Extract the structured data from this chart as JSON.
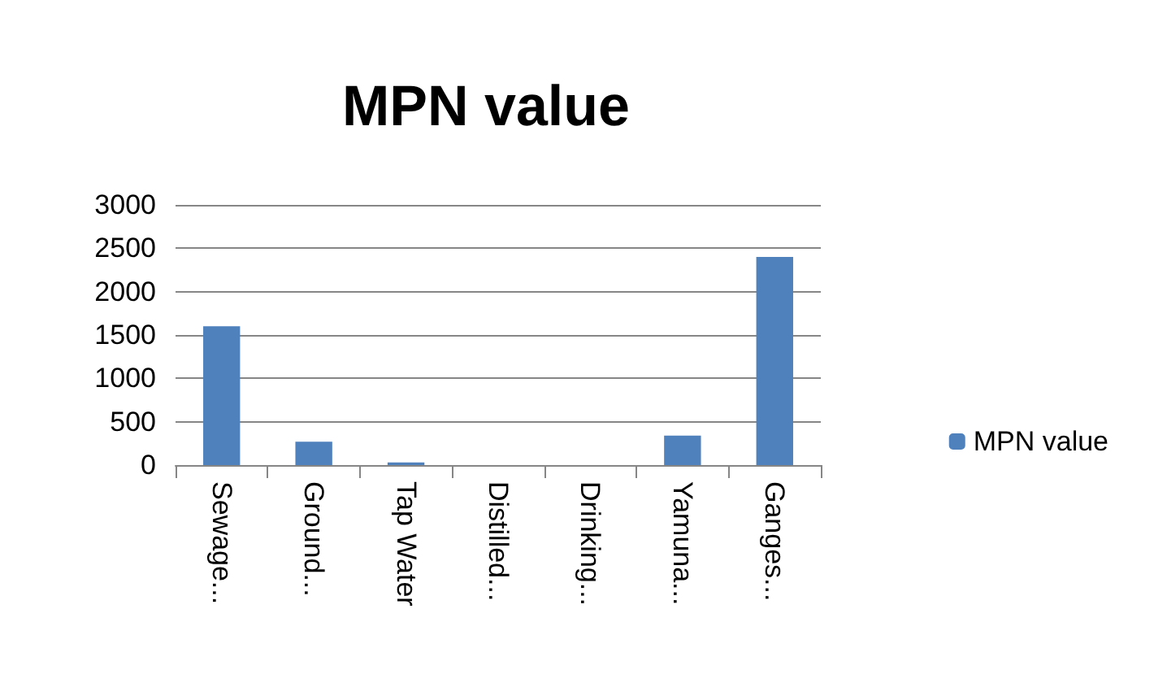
{
  "chart_data": {
    "type": "bar",
    "title": "MPN value",
    "categories": [
      "Sewage...",
      "Ground...",
      "Tap Water",
      "Distilled...",
      "Drinking...",
      "Yamuna...",
      "Ganges..."
    ],
    "series": [
      {
        "name": "MPN value",
        "color": "#4f81bd",
        "values": [
          1600,
          270,
          30,
          0,
          0,
          340,
          2400
        ]
      }
    ],
    "ylim": [
      0,
      3000
    ],
    "yticks": [
      0,
      500,
      1000,
      1500,
      2000,
      2500,
      3000
    ],
    "grid": "y",
    "legend": "right"
  }
}
